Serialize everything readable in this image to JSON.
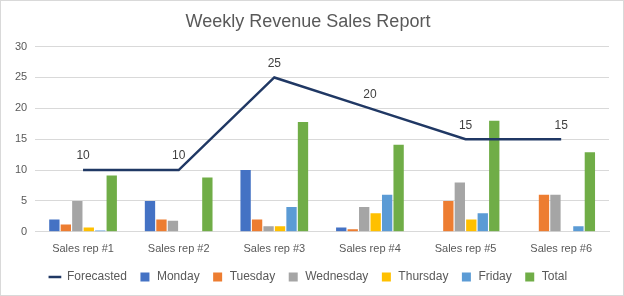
{
  "chart_data": {
    "type": "bar",
    "title": "Weekly Revenue Sales Report",
    "categories": [
      "Sales rep #1",
      "Sales rep #2",
      "Sales rep #3",
      "Sales rep #4",
      "Sales rep #5",
      "Sales rep #6"
    ],
    "series": [
      {
        "name": "Monday",
        "color": "#4472c4",
        "values": [
          2,
          5,
          10,
          0.7,
          0,
          0
        ]
      },
      {
        "name": "Tuesday",
        "color": "#ed7d31",
        "values": [
          1.2,
          2,
          2,
          0.4,
          5,
          6
        ]
      },
      {
        "name": "Wednesday",
        "color": "#a5a5a5",
        "values": [
          5,
          1.8,
          0.9,
          4,
          8,
          6
        ]
      },
      {
        "name": "Thursday",
        "color": "#ffc000",
        "values": [
          0.7,
          0,
          0.9,
          3,
          2,
          0
        ]
      },
      {
        "name": "Friday",
        "color": "#5b9bd5",
        "values": [
          0.2,
          0,
          4,
          6,
          3,
          0.9
        ]
      },
      {
        "name": "Total",
        "color": "#70ad47",
        "values": [
          9.1,
          8.8,
          17.8,
          14.1,
          18,
          12.9
        ]
      },
      {
        "name": "Forecasted",
        "color": "#203864",
        "type": "line",
        "data_labels": true,
        "values": [
          10,
          10,
          25,
          20,
          15,
          15
        ]
      }
    ],
    "ylim": [
      0,
      30
    ],
    "yticks": [
      0,
      5,
      10,
      15,
      20,
      25,
      30
    ],
    "grid": true,
    "legend": "bottom"
  }
}
